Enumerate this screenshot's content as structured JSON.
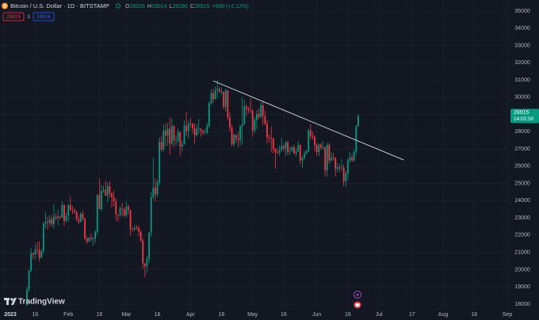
{
  "chart_data": {
    "type": "candlestick",
    "title": "Bitcoin / U.S. Dollar · 1D · BITSTAMP",
    "legend_ohlc": {
      "labels": [
        "O",
        "H",
        "L",
        "C"
      ],
      "values": [
        28316,
        29014,
        28280,
        28915
      ],
      "change": "+600 (+2.12%)"
    },
    "badges": [
      28915,
      3,
      28916
    ],
    "last_price": {
      "value": 28915,
      "label": "28915",
      "countdown": "14:02:50"
    },
    "watermark": "TradingView",
    "up_color": "#089981",
    "down_color": "#f23645",
    "grid": true,
    "ylim": [
      17630,
      35640
    ],
    "yticks": [
      18000,
      19000,
      20000,
      21000,
      22000,
      23000,
      24000,
      25000,
      26000,
      27000,
      28000,
      29000,
      30000,
      31000,
      32000,
      33000,
      34000,
      35000
    ],
    "xlim": [
      "2022-12-30",
      "2023-09-01"
    ],
    "xticks": [
      {
        "value": "2023-01-01",
        "label": "2023"
      },
      {
        "value": "2023-01-16",
        "label": "16"
      },
      {
        "value": "2023-02-01",
        "label": "Feb"
      },
      {
        "value": "2023-02-16",
        "label": "16"
      },
      {
        "value": "2023-03-01",
        "label": "Mar"
      },
      {
        "value": "2023-03-16",
        "label": "16"
      },
      {
        "value": "2023-04-01",
        "label": "Apr"
      },
      {
        "value": "2023-04-16",
        "label": "16"
      },
      {
        "value": "2023-05-01",
        "label": "May"
      },
      {
        "value": "2023-05-16",
        "label": "16"
      },
      {
        "value": "2023-06-01",
        "label": "Jun"
      },
      {
        "value": "2023-06-16",
        "label": "16"
      },
      {
        "value": "2023-07-01",
        "label": "Jul"
      },
      {
        "value": "2023-07-17",
        "label": "17"
      },
      {
        "value": "2023-08-01",
        "label": "Aug"
      },
      {
        "value": "2023-08-16",
        "label": "16"
      },
      {
        "value": "2023-09-01",
        "label": "Sep"
      }
    ],
    "trendline": {
      "x": [
        "2023-04-12",
        "2023-07-13"
      ],
      "y": [
        30950,
        26360
      ],
      "color": "#c8cad0"
    },
    "x": [
      "2023-01-12",
      "2023-01-13",
      "2023-01-14",
      "2023-01-15",
      "2023-01-16",
      "2023-01-17",
      "2023-01-18",
      "2023-01-19",
      "2023-01-20",
      "2023-01-21",
      "2023-01-22",
      "2023-01-23",
      "2023-01-24",
      "2023-01-25",
      "2023-01-26",
      "2023-01-27",
      "2023-01-28",
      "2023-01-29",
      "2023-01-30",
      "2023-01-31",
      "2023-02-01",
      "2023-02-02",
      "2023-02-03",
      "2023-02-04",
      "2023-02-05",
      "2023-02-06",
      "2023-02-07",
      "2023-02-08",
      "2023-02-09",
      "2023-02-10",
      "2023-02-11",
      "2023-02-12",
      "2023-02-13",
      "2023-02-14",
      "2023-02-15",
      "2023-02-16",
      "2023-02-17",
      "2023-02-18",
      "2023-02-19",
      "2023-02-20",
      "2023-02-21",
      "2023-02-22",
      "2023-02-23",
      "2023-02-24",
      "2023-02-25",
      "2023-02-26",
      "2023-02-27",
      "2023-02-28",
      "2023-03-01",
      "2023-03-02",
      "2023-03-03",
      "2023-03-04",
      "2023-03-05",
      "2023-03-06",
      "2023-03-07",
      "2023-03-08",
      "2023-03-09",
      "2023-03-10",
      "2023-03-11",
      "2023-03-12",
      "2023-03-13",
      "2023-03-14",
      "2023-03-15",
      "2023-03-16",
      "2023-03-17",
      "2023-03-18",
      "2023-03-19",
      "2023-03-20",
      "2023-03-21",
      "2023-03-22",
      "2023-03-23",
      "2023-03-24",
      "2023-03-25",
      "2023-03-26",
      "2023-03-27",
      "2023-03-28",
      "2023-03-29",
      "2023-03-30",
      "2023-03-31",
      "2023-04-01",
      "2023-04-02",
      "2023-04-03",
      "2023-04-04",
      "2023-04-05",
      "2023-04-06",
      "2023-04-07",
      "2023-04-08",
      "2023-04-09",
      "2023-04-10",
      "2023-04-11",
      "2023-04-12",
      "2023-04-13",
      "2023-04-14",
      "2023-04-15",
      "2023-04-16",
      "2023-04-17",
      "2023-04-18",
      "2023-04-19",
      "2023-04-20",
      "2023-04-21",
      "2023-04-22",
      "2023-04-23",
      "2023-04-24",
      "2023-04-25",
      "2023-04-26",
      "2023-04-27",
      "2023-04-28",
      "2023-04-29",
      "2023-04-30",
      "2023-05-01",
      "2023-05-02",
      "2023-05-03",
      "2023-05-04",
      "2023-05-05",
      "2023-05-06",
      "2023-05-07",
      "2023-05-08",
      "2023-05-09",
      "2023-05-10",
      "2023-05-11",
      "2023-05-12",
      "2023-05-13",
      "2023-05-14",
      "2023-05-15",
      "2023-05-16",
      "2023-05-17",
      "2023-05-18",
      "2023-05-19",
      "2023-05-20",
      "2023-05-21",
      "2023-05-22",
      "2023-05-23",
      "2023-05-24",
      "2023-05-25",
      "2023-05-26",
      "2023-05-27",
      "2023-05-28",
      "2023-05-29",
      "2023-05-30",
      "2023-05-31",
      "2023-06-01",
      "2023-06-02",
      "2023-06-03",
      "2023-06-04",
      "2023-06-05",
      "2023-06-06",
      "2023-06-07",
      "2023-06-08",
      "2023-06-09",
      "2023-06-10",
      "2023-06-11",
      "2023-06-12",
      "2023-06-13",
      "2023-06-14",
      "2023-06-15",
      "2023-06-16",
      "2023-06-17",
      "2023-06-18",
      "2023-06-19",
      "2023-06-20",
      "2023-06-21"
    ],
    "ohlc": [
      [
        17940,
        19000,
        17900,
        18850
      ],
      [
        18850,
        19990,
        18700,
        19930
      ],
      [
        19930,
        21250,
        19880,
        20960
      ],
      [
        20960,
        21000,
        20600,
        20880
      ],
      [
        20880,
        21450,
        20600,
        21180
      ],
      [
        21180,
        21620,
        20900,
        21140
      ],
      [
        21140,
        21650,
        20450,
        20680
      ],
      [
        20680,
        21200,
        20670,
        21080
      ],
      [
        21080,
        22750,
        20900,
        22670
      ],
      [
        22670,
        23350,
        22400,
        22780
      ],
      [
        22780,
        23080,
        22300,
        22710
      ],
      [
        22710,
        23150,
        22520,
        22920
      ],
      [
        22920,
        23170,
        22480,
        22630
      ],
      [
        22630,
        23800,
        22350,
        23060
      ],
      [
        23060,
        23280,
        22860,
        22990
      ],
      [
        22990,
        23500,
        22550,
        23080
      ],
      [
        23080,
        23160,
        22900,
        23030
      ],
      [
        23030,
        23950,
        23000,
        23740
      ],
      [
        23740,
        23790,
        22560,
        22830
      ],
      [
        22830,
        23300,
        22750,
        23130
      ],
      [
        23130,
        23800,
        22780,
        23730
      ],
      [
        23730,
        24250,
        23400,
        23480
      ],
      [
        23480,
        23700,
        23220,
        23430
      ],
      [
        23430,
        23580,
        23250,
        23330
      ],
      [
        23330,
        23430,
        22800,
        22930
      ],
      [
        22930,
        23150,
        22640,
        22760
      ],
      [
        22760,
        23350,
        22740,
        23240
      ],
      [
        23240,
        23440,
        22820,
        22960
      ],
      [
        22960,
        23000,
        21700,
        21800
      ],
      [
        21800,
        21940,
        21480,
        21630
      ],
      [
        21630,
        21900,
        21600,
        21860
      ],
      [
        21860,
        22100,
        21650,
        21780
      ],
      [
        21780,
        21880,
        21400,
        21780
      ],
      [
        21780,
        22300,
        21550,
        22200
      ],
      [
        22200,
        24380,
        22050,
        24330
      ],
      [
        24330,
        25250,
        23500,
        23520
      ],
      [
        23520,
        24900,
        23360,
        24570
      ],
      [
        24570,
        24880,
        24450,
        24630
      ],
      [
        24630,
        25150,
        24280,
        24300
      ],
      [
        24300,
        25080,
        23900,
        24830
      ],
      [
        24830,
        25100,
        24170,
        24440
      ],
      [
        24440,
        24480,
        23600,
        24190
      ],
      [
        24190,
        24600,
        23670,
        23950
      ],
      [
        23950,
        24120,
        22850,
        23190
      ],
      [
        23190,
        23220,
        22750,
        23160
      ],
      [
        23160,
        23680,
        23070,
        23550
      ],
      [
        23550,
        23880,
        23100,
        23490
      ],
      [
        23490,
        23600,
        23050,
        23140
      ],
      [
        23140,
        23950,
        23020,
        23650
      ],
      [
        23650,
        23780,
        23200,
        23470
      ],
      [
        23470,
        23480,
        21980,
        22360
      ],
      [
        22360,
        22420,
        22200,
        22350
      ],
      [
        22350,
        22600,
        22250,
        22430
      ],
      [
        22430,
        22600,
        22300,
        22410
      ],
      [
        22410,
        22550,
        21950,
        22200
      ],
      [
        22200,
        22280,
        21600,
        21700
      ],
      [
        21700,
        21800,
        20050,
        20360
      ],
      [
        20360,
        20370,
        19570,
        20190
      ],
      [
        20190,
        20800,
        19800,
        20630
      ],
      [
        20630,
        22200,
        20400,
        22140
      ],
      [
        22140,
        24500,
        21900,
        24200
      ],
      [
        24200,
        26500,
        24100,
        24750
      ],
      [
        24750,
        25300,
        23950,
        24370
      ],
      [
        24370,
        25200,
        24200,
        25050
      ],
      [
        25050,
        27700,
        24900,
        27420
      ],
      [
        27420,
        27750,
        26850,
        26970
      ],
      [
        26970,
        28400,
        26830,
        28040
      ],
      [
        28040,
        28500,
        27150,
        27770
      ],
      [
        27770,
        28500,
        27200,
        28170
      ],
      [
        28170,
        28850,
        26650,
        27310
      ],
      [
        27310,
        28750,
        27180,
        28330
      ],
      [
        28330,
        28400,
        27100,
        27490
      ],
      [
        27490,
        27800,
        27200,
        27490
      ],
      [
        27490,
        28200,
        27360,
        27990
      ],
      [
        27990,
        28000,
        26600,
        27140
      ],
      [
        27140,
        27500,
        26850,
        27270
      ],
      [
        27270,
        28650,
        27250,
        28350
      ],
      [
        28350,
        29150,
        27750,
        28030
      ],
      [
        28030,
        28650,
        27600,
        28480
      ],
      [
        28480,
        28800,
        28250,
        28460
      ],
      [
        28460,
        28500,
        27900,
        28200
      ],
      [
        28200,
        28500,
        27300,
        27790
      ],
      [
        27790,
        28450,
        27700,
        28170
      ],
      [
        28170,
        28750,
        27850,
        28180
      ],
      [
        28180,
        28200,
        27700,
        28040
      ],
      [
        28040,
        28120,
        27800,
        27920
      ],
      [
        27920,
        28170,
        27880,
        27950
      ],
      [
        27950,
        28520,
        27850,
        28330
      ],
      [
        28330,
        29750,
        28200,
        29650
      ],
      [
        29650,
        30450,
        29550,
        30240
      ],
      [
        30240,
        30500,
        29650,
        29890
      ],
      [
        29890,
        30620,
        29850,
        30400
      ],
      [
        30400,
        31000,
        29950,
        30490
      ],
      [
        30490,
        30600,
        30250,
        30320
      ],
      [
        30320,
        30550,
        30130,
        30320
      ],
      [
        30320,
        30330,
        29300,
        29440
      ],
      [
        29440,
        30500,
        29150,
        30400
      ],
      [
        30400,
        30420,
        28650,
        28820
      ],
      [
        28820,
        29100,
        28000,
        28250
      ],
      [
        28250,
        28400,
        27150,
        27270
      ],
      [
        27270,
        27900,
        27150,
        27820
      ],
      [
        27820,
        27850,
        27350,
        27590
      ],
      [
        27590,
        28000,
        27100,
        27510
      ],
      [
        27510,
        28380,
        27200,
        28310
      ],
      [
        28310,
        30000,
        27250,
        28420
      ],
      [
        28420,
        29850,
        28400,
        29470
      ],
      [
        29470,
        29580,
        28900,
        29340
      ],
      [
        29340,
        29450,
        29100,
        29250
      ],
      [
        29250,
        29950,
        29050,
        29230
      ],
      [
        29230,
        29330,
        27700,
        28070
      ],
      [
        28070,
        28850,
        27900,
        28680
      ],
      [
        28680,
        29250,
        28150,
        29030
      ],
      [
        29030,
        29350,
        28700,
        28850
      ],
      [
        28850,
        29700,
        28800,
        29530
      ],
      [
        29530,
        29800,
        28400,
        28900
      ],
      [
        28900,
        29200,
        28380,
        28450
      ],
      [
        28450,
        28650,
        27300,
        27690
      ],
      [
        27690,
        27850,
        27380,
        27630
      ],
      [
        27630,
        28300,
        26800,
        27620
      ],
      [
        27620,
        27650,
        26750,
        26990
      ],
      [
        26990,
        27050,
        25850,
        26800
      ],
      [
        26800,
        27050,
        26700,
        26790
      ],
      [
        26790,
        27200,
        26600,
        26930
      ],
      [
        26930,
        27650,
        26850,
        27170
      ],
      [
        27170,
        27280,
        26850,
        27030
      ],
      [
        27030,
        27450,
        26580,
        27400
      ],
      [
        27400,
        27480,
        26650,
        26830
      ],
      [
        26830,
        27150,
        26650,
        26890
      ],
      [
        26890,
        27150,
        26850,
        27110
      ],
      [
        27110,
        27250,
        26700,
        26750
      ],
      [
        26750,
        27050,
        26550,
        26850
      ],
      [
        26850,
        27450,
        26800,
        27230
      ],
      [
        27230,
        27250,
        26100,
        26330
      ],
      [
        26330,
        26600,
        25900,
        26480
      ],
      [
        26480,
        26900,
        26350,
        26720
      ],
      [
        26720,
        26950,
        26650,
        26860
      ],
      [
        26860,
        28180,
        26820,
        28080
      ],
      [
        28080,
        28450,
        27550,
        27740
      ],
      [
        27740,
        28000,
        27550,
        27700
      ],
      [
        27700,
        27820,
        26850,
        27220
      ],
      [
        27220,
        27330,
        26600,
        26820
      ],
      [
        26820,
        27300,
        26580,
        27250
      ],
      [
        27250,
        27350,
        26950,
        27070
      ],
      [
        27070,
        27450,
        26960,
        27120
      ],
      [
        27120,
        27130,
        25400,
        25760
      ],
      [
        25760,
        27350,
        25400,
        27240
      ],
      [
        27240,
        27350,
        26130,
        26340
      ],
      [
        26340,
        26800,
        26220,
        26500
      ],
      [
        26500,
        26780,
        26320,
        26480
      ],
      [
        26480,
        26530,
        25400,
        25840
      ],
      [
        25840,
        26200,
        25650,
        25940
      ],
      [
        25940,
        26100,
        25650,
        25900
      ],
      [
        25900,
        26400,
        25750,
        25920
      ],
      [
        25920,
        26080,
        24850,
        25120
      ],
      [
        25120,
        25750,
        24800,
        25580
      ],
      [
        25580,
        26450,
        25200,
        26340
      ],
      [
        26340,
        26800,
        26200,
        26510
      ],
      [
        26510,
        26700,
        26250,
        26340
      ],
      [
        26340,
        26950,
        26250,
        26850
      ],
      [
        26850,
        28400,
        26650,
        28310
      ],
      [
        28316,
        29014,
        28280,
        28915
      ]
    ]
  }
}
